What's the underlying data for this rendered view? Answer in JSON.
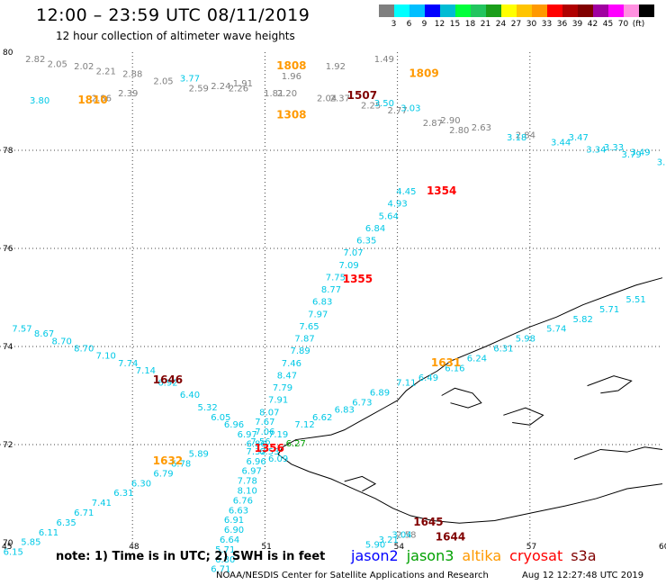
{
  "header": {
    "title": "12:00 – 23:59 UTC 08/11/2019",
    "subtitle": "12 hour collection of altimeter wave heights"
  },
  "legend": {
    "colors": [
      "#7f7f7f",
      "#00ffff",
      "#00bfff",
      "#0000ff",
      "#00bcd4",
      "#00ff3c",
      "#22c55e",
      "#1a9e1a",
      "#ffff00",
      "#ffc400",
      "#ff9900",
      "#ff0000",
      "#b00000",
      "#800000",
      "#a000a0",
      "#ff00ff",
      "#ff90e0",
      "#000000"
    ],
    "labels": [
      "3",
      "6",
      "9",
      "12",
      "15",
      "18",
      "21",
      "24",
      "27",
      "30",
      "33",
      "36",
      "39",
      "42",
      "45",
      "70",
      "(ft)"
    ],
    "unit": "(ft)"
  },
  "footer": {
    "note": "note:  1) Time is in UTC;  2) SWH is in feet",
    "missions": [
      {
        "name": "jason2",
        "color": "#0000ff"
      },
      {
        "name": "jason3",
        "color": "#00a000"
      },
      {
        "name": "altika",
        "color": "#ff9900"
      },
      {
        "name": "cryosat",
        "color": "#ff0000"
      },
      {
        "name": "s3a",
        "color": "#800000"
      }
    ],
    "credit": "NOAA/NESDIS Center for Satellite Applications and Research",
    "stamp": "Aug 12 12:27:48 UTC 2019"
  },
  "chart_data": {
    "type": "scatter",
    "title": "12:00 – 23:59 UTC 08/11/2019",
    "subtitle": "12 hour collection of altimeter wave heights",
    "xlabel": "",
    "ylabel": "",
    "xlim": [
      45,
      60
    ],
    "ylim": [
      70,
      80
    ],
    "x_ticks": [
      45,
      48,
      51,
      54,
      57,
      60
    ],
    "y_ticks": [
      70,
      72,
      74,
      76,
      78,
      80
    ],
    "grid": true,
    "swh_unit": "ft",
    "time_labels": [
      {
        "lon": 47.1,
        "lat": 78.95,
        "label": "1810",
        "color": "#ff9900"
      },
      {
        "lon": 51.6,
        "lat": 79.65,
        "label": "1808",
        "color": "#ff9900"
      },
      {
        "lon": 51.6,
        "lat": 78.65,
        "label": "1308",
        "color": "#ff9900"
      },
      {
        "lon": 54.6,
        "lat": 79.5,
        "label": "1809",
        "color": "#ff9900"
      },
      {
        "lon": 53.2,
        "lat": 79.05,
        "label": "1507",
        "color": "#800000"
      },
      {
        "lon": 55.0,
        "lat": 77.1,
        "label": "1354",
        "color": "#ff0000"
      },
      {
        "lon": 53.1,
        "lat": 75.3,
        "label": "1355",
        "color": "#ff0000"
      },
      {
        "lon": 55.1,
        "lat": 73.6,
        "label": "1631",
        "color": "#ff9900"
      },
      {
        "lon": 48.8,
        "lat": 73.25,
        "label": "1646",
        "color": "#800000"
      },
      {
        "lon": 51.1,
        "lat": 71.85,
        "label": "1356",
        "color": "#ff0000"
      },
      {
        "lon": 48.8,
        "lat": 71.6,
        "label": "1632",
        "color": "#ff9900"
      },
      {
        "lon": 54.7,
        "lat": 70.35,
        "label": "1645",
        "color": "#800000"
      },
      {
        "lon": 55.2,
        "lat": 70.05,
        "label": "1644",
        "color": "#800000"
      }
    ],
    "series": [
      {
        "name": "jason3",
        "color": "#00a000",
        "points": [
          {
            "lon": 51.7,
            "lat": 71.96,
            "swh": 6.27
          }
        ]
      },
      {
        "name": "gray",
        "color": "#808080",
        "points": [
          {
            "lon": 45.8,
            "lat": 79.8,
            "swh": 2.82
          },
          {
            "lon": 46.3,
            "lat": 79.7,
            "swh": 2.05
          },
          {
            "lon": 46.9,
            "lat": 79.65,
            "swh": 2.02
          },
          {
            "lon": 47.4,
            "lat": 79.55,
            "swh": 2.21
          },
          {
            "lon": 48.0,
            "lat": 79.5,
            "swh": 2.88
          },
          {
            "lon": 48.7,
            "lat": 79.35,
            "swh": 2.05
          },
          {
            "lon": 49.5,
            "lat": 79.2,
            "swh": 2.59
          },
          {
            "lon": 50.0,
            "lat": 79.25,
            "swh": 2.24
          },
          {
            "lon": 50.5,
            "lat": 79.3,
            "swh": 1.91
          },
          {
            "lon": 50.4,
            "lat": 79.2,
            "swh": 2.26
          },
          {
            "lon": 51.2,
            "lat": 79.1,
            "swh": 1.81
          },
          {
            "lon": 51.5,
            "lat": 79.1,
            "swh": 2.2
          },
          {
            "lon": 51.6,
            "lat": 79.45,
            "swh": 1.96
          },
          {
            "lon": 52.4,
            "lat": 79.0,
            "swh": 2.04
          },
          {
            "lon": 52.7,
            "lat": 79.0,
            "swh": 2.37
          },
          {
            "lon": 52.6,
            "lat": 79.65,
            "swh": 1.92
          },
          {
            "lon": 53.7,
            "lat": 79.8,
            "swh": 1.49
          },
          {
            "lon": 47.3,
            "lat": 79.0,
            "swh": 2.86
          },
          {
            "lon": 47.9,
            "lat": 79.1,
            "swh": 2.39
          },
          {
            "lon": 53.4,
            "lat": 78.85,
            "swh": 2.25
          },
          {
            "lon": 54.0,
            "lat": 78.75,
            "swh": 2.77
          },
          {
            "lon": 54.8,
            "lat": 78.5,
            "swh": 2.87
          },
          {
            "lon": 55.2,
            "lat": 78.55,
            "swh": 2.9
          },
          {
            "lon": 55.4,
            "lat": 78.35,
            "swh": 2.8
          },
          {
            "lon": 55.9,
            "lat": 78.4,
            "swh": 2.63
          },
          {
            "lon": 56.9,
            "lat": 78.25,
            "swh": 2.84
          },
          {
            "lon": 54.2,
            "lat": 70.1,
            "swh": 2.58
          }
        ]
      },
      {
        "name": "cyan",
        "color": "#00c8e6",
        "points": [
          {
            "lon": 49.3,
            "lat": 79.4,
            "swh": 3.77
          },
          {
            "lon": 53.7,
            "lat": 78.9,
            "swh": 3.5
          },
          {
            "lon": 54.3,
            "lat": 78.8,
            "swh": 3.03
          },
          {
            "lon": 45.9,
            "lat": 78.95,
            "swh": 3.8
          },
          {
            "lon": 56.7,
            "lat": 78.2,
            "swh": 3.18
          },
          {
            "lon": 57.7,
            "lat": 78.1,
            "swh": 3.44
          },
          {
            "lon": 58.1,
            "lat": 78.2,
            "swh": 3.47
          },
          {
            "lon": 58.5,
            "lat": 77.95,
            "swh": 3.34
          },
          {
            "lon": 58.9,
            "lat": 78.0,
            "swh": 3.33
          },
          {
            "lon": 59.3,
            "lat": 77.85,
            "swh": 3.79
          },
          {
            "lon": 59.5,
            "lat": 77.9,
            "swh": 3.49
          },
          {
            "lon": 60.1,
            "lat": 77.7,
            "swh": 3.72
          },
          {
            "lon": 54.2,
            "lat": 77.1,
            "swh": 4.45
          },
          {
            "lon": 54.0,
            "lat": 76.85,
            "swh": 4.93
          },
          {
            "lon": 53.8,
            "lat": 76.6,
            "swh": 5.64
          },
          {
            "lon": 53.5,
            "lat": 76.35,
            "swh": 6.84
          },
          {
            "lon": 53.3,
            "lat": 76.1,
            "swh": 6.35
          },
          {
            "lon": 53.0,
            "lat": 75.85,
            "swh": 7.07
          },
          {
            "lon": 52.9,
            "lat": 75.6,
            "swh": 7.09
          },
          {
            "lon": 52.6,
            "lat": 75.35,
            "swh": 7.75
          },
          {
            "lon": 52.5,
            "lat": 75.1,
            "swh": 8.77
          },
          {
            "lon": 52.3,
            "lat": 74.85,
            "swh": 6.83
          },
          {
            "lon": 52.2,
            "lat": 74.6,
            "swh": 7.97
          },
          {
            "lon": 52.0,
            "lat": 74.35,
            "swh": 7.65
          },
          {
            "lon": 51.9,
            "lat": 74.1,
            "swh": 7.87
          },
          {
            "lon": 51.8,
            "lat": 73.85,
            "swh": 7.89
          },
          {
            "lon": 51.6,
            "lat": 73.6,
            "swh": 7.46
          },
          {
            "lon": 51.5,
            "lat": 73.35,
            "swh": 8.47
          },
          {
            "lon": 51.4,
            "lat": 73.1,
            "swh": 7.79
          },
          {
            "lon": 51.3,
            "lat": 72.85,
            "swh": 7.91
          },
          {
            "lon": 51.1,
            "lat": 72.6,
            "swh": 8.07
          },
          {
            "lon": 51.0,
            "lat": 72.4,
            "swh": 7.67
          },
          {
            "lon": 51.0,
            "lat": 72.2,
            "swh": 7.06
          },
          {
            "lon": 50.9,
            "lat": 72.0,
            "swh": 7.56
          },
          {
            "lon": 50.8,
            "lat": 71.8,
            "swh": 7.32
          },
          {
            "lon": 50.8,
            "lat": 71.6,
            "swh": 6.96
          },
          {
            "lon": 50.7,
            "lat": 71.4,
            "swh": 6.97
          },
          {
            "lon": 50.6,
            "lat": 71.2,
            "swh": 7.78
          },
          {
            "lon": 50.6,
            "lat": 71.0,
            "swh": 8.1
          },
          {
            "lon": 50.5,
            "lat": 70.8,
            "swh": 6.76
          },
          {
            "lon": 50.4,
            "lat": 70.6,
            "swh": 6.63
          },
          {
            "lon": 50.3,
            "lat": 70.4,
            "swh": 6.91
          },
          {
            "lon": 50.3,
            "lat": 70.2,
            "swh": 6.9
          },
          {
            "lon": 50.2,
            "lat": 70.0,
            "swh": 6.64
          },
          {
            "lon": 50.1,
            "lat": 69.8,
            "swh": 5.71
          },
          {
            "lon": 50.1,
            "lat": 69.6,
            "swh": 6.8
          },
          {
            "lon": 50.0,
            "lat": 69.4,
            "swh": 6.71
          },
          {
            "lon": 51.3,
            "lat": 72.15,
            "swh": 7.19
          },
          {
            "lon": 51.9,
            "lat": 72.35,
            "swh": 7.12
          },
          {
            "lon": 52.3,
            "lat": 72.5,
            "swh": 6.62
          },
          {
            "lon": 52.8,
            "lat": 72.65,
            "swh": 6.83
          },
          {
            "lon": 53.2,
            "lat": 72.8,
            "swh": 6.73
          },
          {
            "lon": 53.6,
            "lat": 73.0,
            "swh": 6.89
          },
          {
            "lon": 54.2,
            "lat": 73.2,
            "swh": 7.11
          },
          {
            "lon": 54.7,
            "lat": 73.3,
            "swh": 6.49
          },
          {
            "lon": 55.3,
            "lat": 73.5,
            "swh": 6.16
          },
          {
            "lon": 55.8,
            "lat": 73.7,
            "swh": 6.24
          },
          {
            "lon": 56.4,
            "lat": 73.9,
            "swh": 6.31
          },
          {
            "lon": 56.9,
            "lat": 74.1,
            "swh": 5.98
          },
          {
            "lon": 57.6,
            "lat": 74.3,
            "swh": 5.74
          },
          {
            "lon": 58.2,
            "lat": 74.5,
            "swh": 5.82
          },
          {
            "lon": 58.8,
            "lat": 74.7,
            "swh": 5.71
          },
          {
            "lon": 59.4,
            "lat": 74.9,
            "swh": 5.51
          },
          {
            "lon": 45.5,
            "lat": 74.3,
            "swh": 7.57
          },
          {
            "lon": 46.0,
            "lat": 74.2,
            "swh": 8.67
          },
          {
            "lon": 46.4,
            "lat": 74.05,
            "swh": 8.7
          },
          {
            "lon": 46.9,
            "lat": 73.9,
            "swh": 8.7
          },
          {
            "lon": 47.4,
            "lat": 73.75,
            "swh": 7.1
          },
          {
            "lon": 47.9,
            "lat": 73.6,
            "swh": 7.74
          },
          {
            "lon": 48.3,
            "lat": 73.45,
            "swh": 7.14
          },
          {
            "lon": 48.8,
            "lat": 73.2,
            "swh": 6.92
          },
          {
            "lon": 49.3,
            "lat": 72.95,
            "swh": 6.4
          },
          {
            "lon": 49.7,
            "lat": 72.7,
            "swh": 5.32
          },
          {
            "lon": 50.0,
            "lat": 72.5,
            "swh": 6.05
          },
          {
            "lon": 50.3,
            "lat": 72.35,
            "swh": 6.96
          },
          {
            "lon": 50.6,
            "lat": 72.15,
            "swh": 6.97
          },
          {
            "lon": 50.8,
            "lat": 71.95,
            "swh": 6.86
          },
          {
            "lon": 51.1,
            "lat": 71.8,
            "swh": 6.53
          },
          {
            "lon": 51.3,
            "lat": 71.65,
            "swh": 6.09
          },
          {
            "lon": 49.5,
            "lat": 71.75,
            "swh": 5.89
          },
          {
            "lon": 49.1,
            "lat": 71.55,
            "swh": 6.78
          },
          {
            "lon": 48.7,
            "lat": 71.35,
            "swh": 6.79
          },
          {
            "lon": 48.2,
            "lat": 71.15,
            "swh": 6.3
          },
          {
            "lon": 47.8,
            "lat": 70.95,
            "swh": 6.31
          },
          {
            "lon": 47.3,
            "lat": 70.75,
            "swh": 7.41
          },
          {
            "lon": 46.9,
            "lat": 70.55,
            "swh": 6.71
          },
          {
            "lon": 46.5,
            "lat": 70.35,
            "swh": 6.35
          },
          {
            "lon": 46.1,
            "lat": 70.15,
            "swh": 6.11
          },
          {
            "lon": 45.7,
            "lat": 69.95,
            "swh": 5.85
          },
          {
            "lon": 45.3,
            "lat": 69.75,
            "swh": 6.15
          },
          {
            "lon": 53.5,
            "lat": 69.9,
            "swh": 5.9
          },
          {
            "lon": 53.8,
            "lat": 70.0,
            "swh": 3.21
          },
          {
            "lon": 54.1,
            "lat": 70.1,
            "swh": 3.04
          }
        ]
      }
    ]
  }
}
